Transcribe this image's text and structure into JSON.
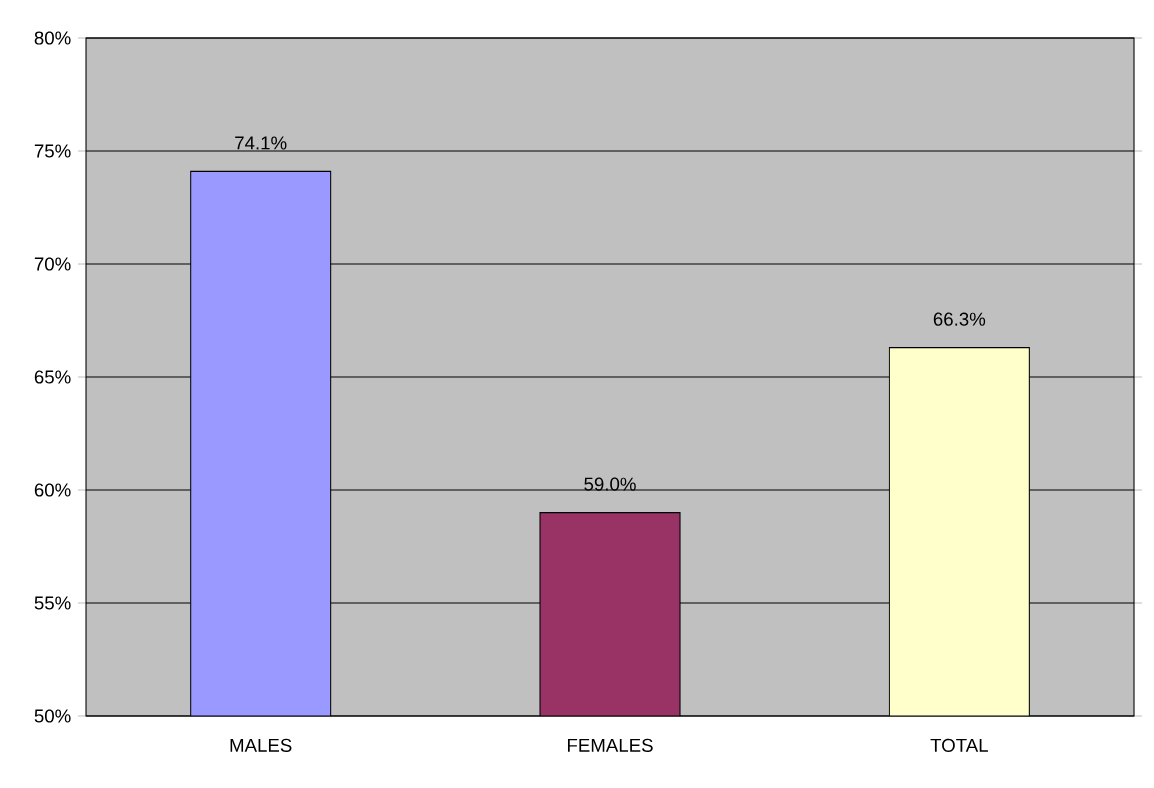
{
  "chart_data": {
    "type": "bar",
    "categories": [
      "MALES",
      "FEMALES",
      "TOTAL"
    ],
    "values": [
      74.1,
      59.0,
      66.3
    ],
    "colors": [
      "#9999ff",
      "#993366",
      "#ffffcc"
    ],
    "value_labels": [
      "74.1%",
      "59.0%",
      "66.3%"
    ],
    "ylim": [
      50,
      80
    ],
    "yticks": [
      {
        "value": 50,
        "label": "50%"
      },
      {
        "value": 55,
        "label": "55%"
      },
      {
        "value": 60,
        "label": "60%"
      },
      {
        "value": 65,
        "label": "65%"
      },
      {
        "value": 70,
        "label": "70%"
      },
      {
        "value": 75,
        "label": "75%"
      },
      {
        "value": 80,
        "label": "80%"
      }
    ],
    "grid": "y"
  }
}
